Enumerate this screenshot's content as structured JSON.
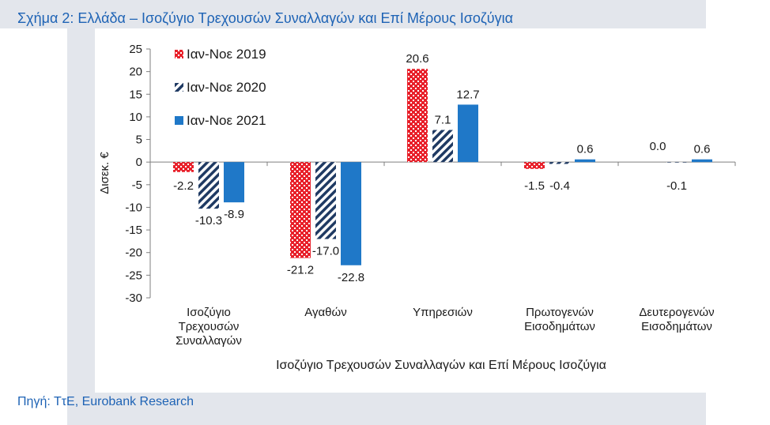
{
  "figure": {
    "title": "Σχήμα 2: Ελλάδα – Ισοζύγιο Τρεχουσών Συναλλαγών και Επί Μέρους Ισοζύγια",
    "source": "Πηγή: ΤτΕ, Eurobank Research"
  },
  "colors": {
    "title_text": "#1e63b5",
    "series_2019": "#e8202a",
    "series_2020": "#1f3a63",
    "series_2021": "#1f78c8"
  },
  "chart_data": {
    "type": "bar",
    "title": "",
    "xlabel": "Ισοζύγιο Τρεχουσών Συναλλαγών και Επί Μέρους Ισοζύγια",
    "ylabel": "Δισεκ. €",
    "ylim": [
      -30,
      25
    ],
    "yticks": [
      "25",
      "20",
      "15",
      "10",
      "5",
      "0",
      "-5",
      "-10",
      "-15",
      "-20",
      "-25",
      "-30"
    ],
    "grid": false,
    "legend_position": "top-left",
    "categories": [
      [
        "Ισοζύγιο",
        "Τρεχουσών",
        "Συναλλαγών"
      ],
      [
        "Αγαθών"
      ],
      [
        "Υπηρεσιών"
      ],
      [
        "Πρωτογενών",
        "Εισοδημάτων"
      ],
      [
        "Δευτερογενών",
        "Εισοδημάτων"
      ]
    ],
    "series": [
      {
        "name": "Ιαν-Νοε 2019",
        "pattern": "dots",
        "values": [
          -2.2,
          -21.2,
          20.6,
          -1.5,
          null
        ],
        "labels": [
          "-2.2",
          "-21.2",
          "20.6",
          "-1.5",
          ""
        ]
      },
      {
        "name": "Ιαν-Νοε 2020",
        "pattern": "stripes",
        "values": [
          -10.3,
          -17.0,
          7.1,
          -0.4,
          -0.1
        ],
        "labels": [
          "-10.3",
          "-17.0",
          "7.1",
          "-0.4",
          "-0.1"
        ]
      },
      {
        "name": "Ιαν-Νοε 2021",
        "pattern": "solid",
        "values": [
          -8.9,
          -22.8,
          12.7,
          0.6,
          0.6
        ],
        "labels": [
          "-8.9",
          "-22.8",
          "12.7",
          "0.6",
          "0.6"
        ]
      }
    ],
    "extra_labels": [
      {
        "category": 4,
        "text": "0.0"
      }
    ]
  }
}
